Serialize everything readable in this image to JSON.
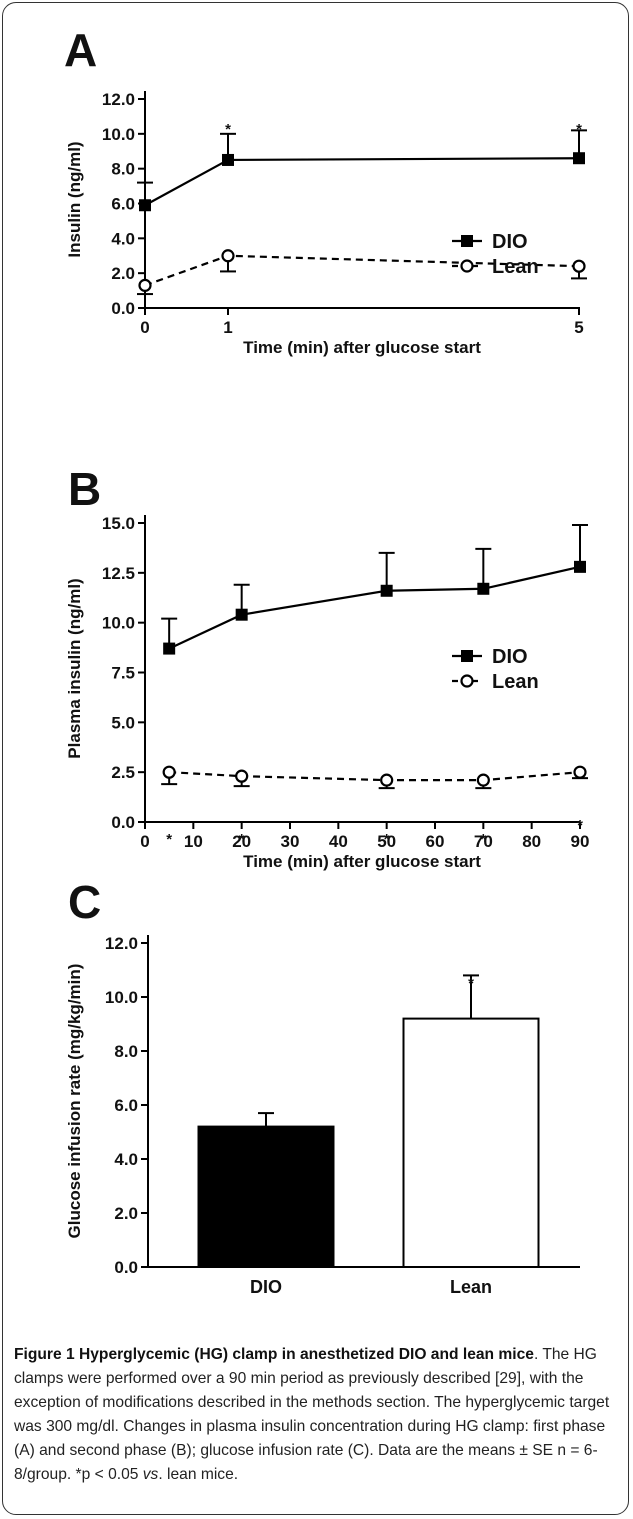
{
  "panels": {
    "A": "A",
    "B": "B",
    "C": "C"
  },
  "chart_data": [
    {
      "panel": "A",
      "type": "line",
      "xlabel": "Time (min) after glucose start",
      "ylabel": "Insulin (ng/ml)",
      "x": [
        0,
        1,
        5
      ],
      "xticks": [
        "0",
        "1",
        "5"
      ],
      "yticks": [
        "0.0",
        "2.0",
        "4.0",
        "6.0",
        "8.0",
        "10.0",
        "12.0"
      ],
      "ylim": [
        0,
        12
      ],
      "series": [
        {
          "name": "DIO",
          "marker": "filled-square",
          "line": "solid",
          "values": [
            5.9,
            8.5,
            8.6
          ],
          "error_up": [
            1.3,
            1.5,
            1.6
          ]
        },
        {
          "name": "Lean",
          "marker": "open-circle",
          "line": "dashed",
          "values": [
            1.3,
            3.0,
            2.4
          ],
          "error_down": [
            0.5,
            0.9,
            0.7
          ]
        }
      ],
      "significance": [
        {
          "x": 1,
          "label": "*"
        },
        {
          "x": 5,
          "label": "*"
        }
      ],
      "legend": "right"
    },
    {
      "panel": "B",
      "type": "line",
      "xlabel": "Time (min) after glucose start",
      "ylabel": "Plasma insulin (ng/ml)",
      "x": [
        5,
        20,
        50,
        70,
        90
      ],
      "xticks": [
        "0",
        "10",
        "20",
        "30",
        "40",
        "50",
        "60",
        "70",
        "80",
        "90"
      ],
      "yticks": [
        "0.0",
        "2.5",
        "5.0",
        "7.5",
        "10.0",
        "12.5",
        "15.0"
      ],
      "xlim": [
        0,
        90
      ],
      "ylim": [
        0,
        15
      ],
      "series": [
        {
          "name": "DIO",
          "marker": "filled-square",
          "line": "solid",
          "values": [
            8.7,
            10.4,
            11.6,
            11.7,
            12.8
          ],
          "error_up": [
            1.5,
            1.5,
            1.9,
            2.0,
            2.1
          ]
        },
        {
          "name": "Lean",
          "marker": "open-circle",
          "line": "dashed",
          "values": [
            2.5,
            2.3,
            2.1,
            2.1,
            2.5
          ],
          "error_down": [
            0.6,
            0.5,
            0.4,
            0.4,
            0.3
          ]
        }
      ],
      "significance": [
        {
          "x": 5,
          "label": "*"
        },
        {
          "x": 20,
          "label": "*"
        },
        {
          "x": 50,
          "label": "*"
        },
        {
          "x": 70,
          "label": "*"
        },
        {
          "x": 90,
          "label": "*"
        }
      ],
      "legend": "right"
    },
    {
      "panel": "C",
      "type": "bar",
      "ylabel": "Glucose infusion rate (mg/kg/min)",
      "categories": [
        "DIO",
        "Lean"
      ],
      "values": [
        5.2,
        9.2
      ],
      "error_up": [
        0.5,
        1.6
      ],
      "colors": [
        "#000000",
        "#ffffff"
      ],
      "yticks": [
        "0.0",
        "2.0",
        "4.0",
        "6.0",
        "8.0",
        "10.0",
        "12.0"
      ],
      "ylim": [
        0,
        12
      ],
      "significance": [
        {
          "category": "Lean",
          "label": "*"
        }
      ]
    }
  ],
  "caption": {
    "title": "Figure 1 Hyperglycemic (HG) clamp in anesthetized DIO and lean mice",
    "pre_vs": ". The HG clamps were performed over a 90 min period as previously described [29], with the exception of modifications described in the methods section. The hyperglycemic target was 300 mg/dl. Changes in plasma insulin concentration during HG clamp: first phase (A) and second phase (B); glucose infusion rate (C). Data are the means ± SE n = 6-8/group. *p < 0.05 ",
    "vs": "vs",
    "post_vs": ". lean mice."
  }
}
